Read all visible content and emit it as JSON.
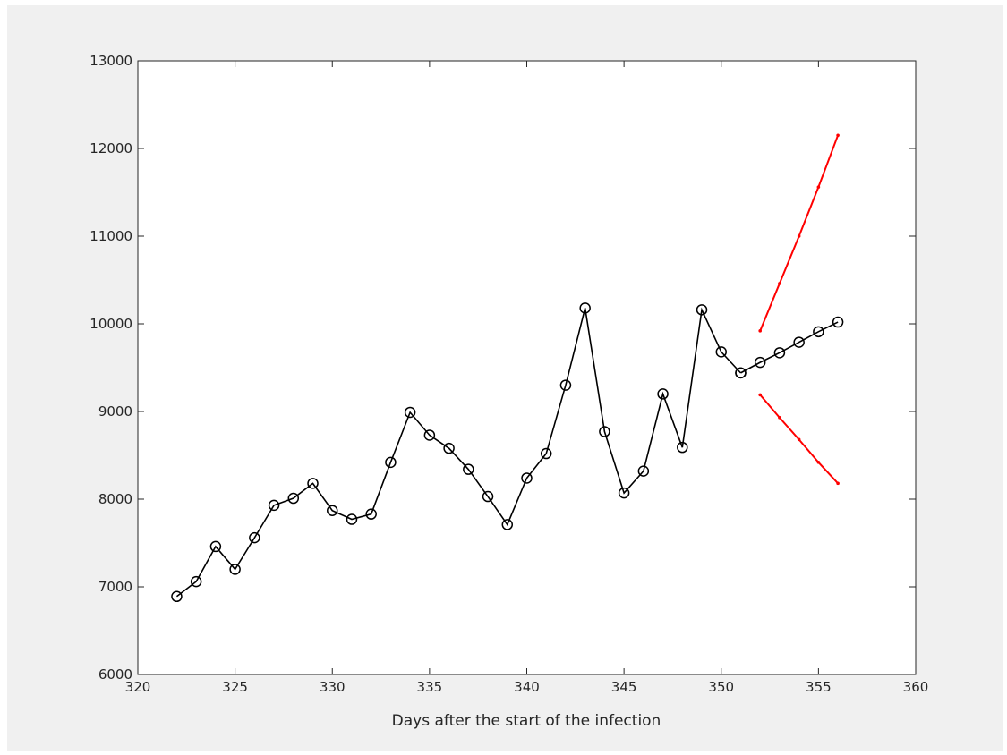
{
  "chart_data": {
    "type": "line",
    "title": "",
    "xlabel": "Days after the start of the infection",
    "ylabel": "",
    "xlim": [
      320,
      360
    ],
    "ylim": [
      6000,
      13000
    ],
    "xticks": [
      320,
      325,
      330,
      335,
      340,
      345,
      350,
      355,
      360
    ],
    "yticks": [
      6000,
      7000,
      8000,
      9000,
      10000,
      11000,
      12000,
      13000
    ],
    "grid": false,
    "series": [
      {
        "color": "#000000",
        "marker": "circle",
        "x": [
          322,
          323,
          324,
          325,
          326,
          327,
          328,
          329,
          330,
          331,
          332,
          333,
          334,
          335,
          336,
          337,
          338,
          339,
          340,
          341,
          342,
          343,
          344,
          345,
          346,
          347,
          348,
          349,
          350,
          351
        ],
        "y": [
          6890,
          7060,
          7460,
          7200,
          7560,
          7930,
          8010,
          8180,
          7870,
          7770,
          7830,
          8420,
          8990,
          8730,
          8580,
          8340,
          8030,
          7710,
          8240,
          8520,
          9300,
          10180,
          8770,
          8070,
          8320,
          9200,
          8590,
          10160,
          9680,
          9440
        ]
      },
      {
        "color": "#000000",
        "marker": "circle",
        "x": [
          351,
          352,
          353,
          354,
          355,
          356
        ],
        "y": [
          9440,
          9560,
          9670,
          9790,
          9910,
          10020
        ]
      },
      {
        "color": "#ff0000",
        "marker": "dot",
        "x": [
          352,
          353,
          354,
          355,
          356
        ],
        "y": [
          9920,
          10460,
          11000,
          11560,
          12150
        ]
      },
      {
        "color": "#ff0000",
        "marker": "dot",
        "x": [
          352,
          353,
          354,
          355,
          356
        ],
        "y": [
          9190,
          8930,
          8680,
          8420,
          8180
        ]
      }
    ]
  }
}
